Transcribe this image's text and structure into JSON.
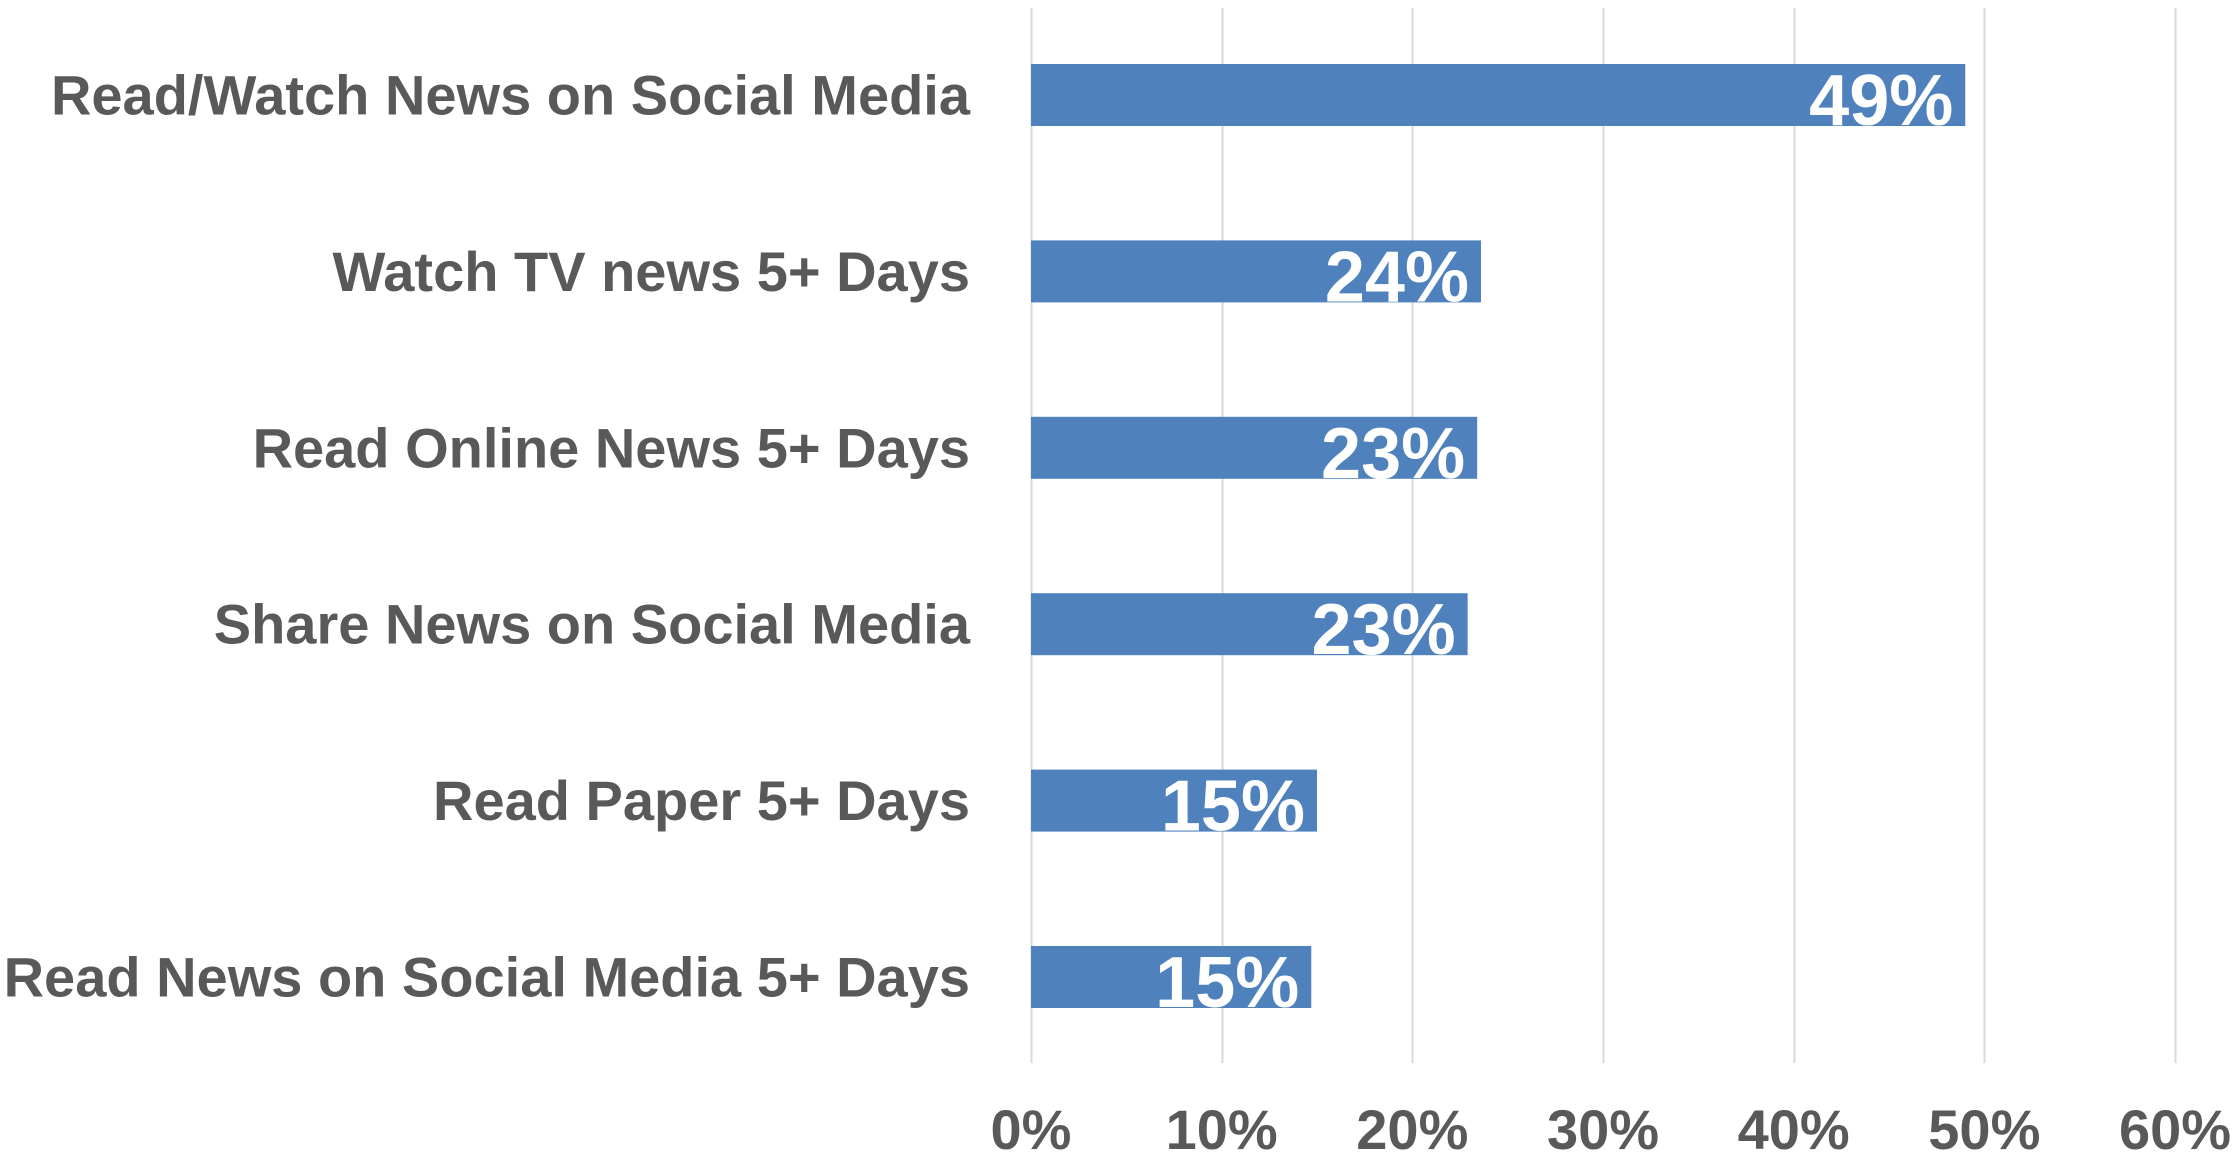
{
  "chart_data": {
    "type": "bar",
    "orientation": "horizontal",
    "title": "",
    "xlabel": "",
    "ylabel": "",
    "categories": [
      "Read/Watch News on Social Media",
      "Watch TV news 5+ Days",
      "Read Online News 5+ Days",
      "Share News on Social Media",
      "Read Paper 5+ Days",
      "Read News on Social Media 5+ Days"
    ],
    "values": [
      49,
      23.6,
      23.4,
      22.9,
      15,
      14.7
    ],
    "data_labels": [
      "49%",
      "24%",
      "23%",
      "23%",
      "15%",
      "15%"
    ],
    "xlim": [
      0,
      60
    ],
    "x_ticks": [
      0,
      10,
      20,
      30,
      40,
      50,
      60
    ],
    "x_tick_labels": [
      "0%",
      "10%",
      "20%",
      "30%",
      "40%",
      "50%",
      "60%"
    ],
    "grid": "vertical",
    "legend": "none",
    "colors": {
      "bar": "#4F81BD",
      "grid": "#D9D9D9",
      "text": "#595959",
      "data_label": "#FFFFFF"
    }
  }
}
